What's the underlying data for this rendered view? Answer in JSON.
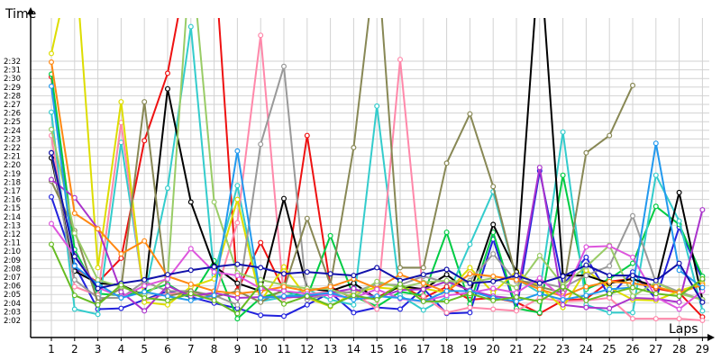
{
  "chart_data": {
    "type": "line",
    "xlabel": "Laps",
    "ylabel": "Time",
    "x": [
      1,
      2,
      3,
      4,
      5,
      6,
      7,
      8,
      9,
      10,
      11,
      12,
      13,
      14,
      15,
      16,
      17,
      18,
      19,
      20,
      21,
      22,
      23,
      24,
      25,
      26,
      27,
      28,
      29
    ],
    "x_ticks": [
      "1",
      "2",
      "3",
      "4",
      "5",
      "6",
      "7",
      "8",
      "9",
      "10",
      "11",
      "12",
      "13",
      "14",
      "15",
      "16",
      "17",
      "18",
      "19",
      "20",
      "21",
      "22",
      "23",
      "24",
      "25",
      "26",
      "27",
      "28",
      "29"
    ],
    "y_ticks": [
      "2:02",
      "2:03",
      "2:04",
      "2:05",
      "2:06",
      "2:07",
      "2:08",
      "2:09",
      "2:10",
      "2:11",
      "2:12",
      "2:13",
      "2:14",
      "2:15",
      "2:16",
      "2:17",
      "2:18",
      "2:19",
      "2:20",
      "2:21",
      "2:22",
      "2:23",
      "2:24",
      "2:25",
      "2:26",
      "2:27",
      "2:28",
      "2:29",
      "2:30",
      "2:31",
      "2:32"
    ],
    "ylim": [
      121,
      153
    ],
    "grid": true,
    "series": [
      {
        "color": "#ee1111",
        "values": [
          150.2,
          128.1,
          126.4,
          129.2,
          142.8,
          150.6,
          165,
          165,
          125.5,
          131,
          125.5,
          143.4,
          125.9,
          124.5,
          124.6,
          126.1,
          124.6,
          125.9,
          124.4,
          124.6,
          124.1,
          122.8,
          124.3,
          124.5,
          126.5,
          126.8,
          125.7,
          125.2,
          122.4
        ]
      },
      {
        "color": "#2222dd",
        "values": [
          136.3,
          128.4,
          123.3,
          123.4,
          124.4,
          125.4,
          124.7,
          124,
          123.4,
          122.6,
          122.5,
          123.8,
          125.2,
          122.9,
          123.5,
          123.3,
          125.7,
          122.8,
          122.9,
          131.4,
          123.2,
          139.3,
          126.1,
          129.3,
          124.8,
          127.6,
          124.5,
          132.8,
          126.7
        ]
      },
      {
        "color": "#00cc44",
        "values": [
          150.5,
          130.2,
          125.1,
          124.9,
          125.3,
          126.2,
          124.6,
          128.9,
          122.2,
          124.6,
          125.4,
          124.7,
          131.8,
          124.8,
          123.6,
          125.3,
          124.9,
          132.2,
          123.9,
          132.2,
          123.4,
          122.9,
          138.8,
          125.6,
          126.8,
          128.6,
          135.2,
          133.1,
          127.1
        ]
      },
      {
        "color": "#33cccc",
        "values": [
          146.1,
          123.3,
          122.7,
          142.6,
          124.8,
          137.3,
          156,
          127.3,
          137.6,
          124.2,
          124.7,
          125.6,
          124.4,
          123.8,
          146.8,
          124.9,
          123.2,
          124.7,
          130.8,
          136.9,
          126.8,
          125.2,
          143.8,
          123.8,
          122.9,
          122.9,
          138.8,
          133.5,
          123.1
        ]
      },
      {
        "color": "#ff88aa",
        "values": [
          143.4,
          125.9,
          124.9,
          144.9,
          124.3,
          125.1,
          125.2,
          124.4,
          133.3,
          155,
          124.5,
          125,
          125.4,
          125.2,
          123.3,
          152.2,
          124.8,
          122.9,
          123.5,
          123.3,
          123.1,
          124.6,
          124.2,
          124.3,
          124.6,
          122.2,
          122.2,
          122.2,
          122.0
        ]
      },
      {
        "color": "#dddd00",
        "values": [
          152.9,
          165,
          128.1,
          147.3,
          124.1,
          123.8,
          125.9,
          126.8,
          136,
          124.2,
          128.2,
          124.6,
          123.6,
          125.2,
          125.8,
          125.6,
          125.7,
          125.2,
          128.1,
          125.2,
          127.7,
          125.9,
          123.5,
          127.8,
          125.8,
          124.4,
          124.3,
          125.4,
          126.3
        ]
      },
      {
        "color": "#000000",
        "values": [
          140.8,
          127.7,
          126.3,
          126.1,
          124.9,
          148.8,
          135.7,
          128.3,
          126.3,
          125.4,
          136.1,
          125.7,
          125.4,
          126.3,
          124.5,
          126,
          125.6,
          127.3,
          125.2,
          133.1,
          127.6,
          165,
          127.2,
          127.2,
          126.3,
          126.8,
          125.9,
          136.8,
          124.4
        ]
      },
      {
        "color": "#999999",
        "values": [
          141.4,
          126.7,
          124.6,
          124.6,
          126.5,
          125.4,
          125.4,
          124.9,
          123.8,
          142.4,
          151.4,
          124.4,
          125.1,
          125.3,
          126.2,
          126.1,
          127.1,
          126.4,
          126.6,
          129.7,
          126.5,
          126.4,
          125.8,
          127.2,
          128.3,
          134.1,
          126.4,
          125.3,
          124.4
        ]
      },
      {
        "color": "#888855",
        "values": [
          138.1,
          132.4,
          124.1,
          125.7,
          147.3,
          124.8,
          125.4,
          124.7,
          125.4,
          124.1,
          125.6,
          133.8,
          126.1,
          142,
          165,
          128.1,
          128.1,
          140.2,
          145.9,
          137.5,
          126.8,
          125.9,
          125.2,
          141.4,
          143.4,
          149.2,
          null,
          null,
          null
        ]
      },
      {
        "color": "#aa33cc",
        "values": [
          138.3,
          136.2,
          132.6,
          125.3,
          123.1,
          126,
          124.8,
          125.2,
          124.6,
          124.7,
          124.7,
          124.7,
          125.2,
          125.7,
          124.6,
          125.5,
          125.6,
          126.5,
          125.5,
          124.8,
          124.5,
          139.7,
          123.8,
          123.5,
          123.4,
          124.6,
          124.5,
          124.1,
          134.8
        ]
      },
      {
        "color": "#99cc66",
        "values": [
          144.1,
          132.1,
          126.7,
          125.9,
          124.9,
          126.9,
          165,
          135.7,
          127.5,
          126.7,
          126.1,
          125.7,
          125.6,
          124.7,
          126.5,
          125.8,
          126.4,
          126.6,
          126.4,
          126.9,
          125.8,
          129.5,
          126.1,
          128.2,
          130.7,
          124.8,
          126.4,
          125.1,
          124.4
        ]
      },
      {
        "color": "#ff8811",
        "values": [
          151.9,
          134.4,
          132.6,
          129.7,
          131.2,
          127.1,
          126.2,
          125.4,
          125.1,
          125.4,
          125.9,
          125.4,
          125.9,
          126.8,
          125.7,
          127.3,
          126.3,
          125.3,
          127.4,
          127.1,
          126.7,
          125.6,
          124.8,
          125.9,
          126.5,
          126.3,
          125.9,
          125.2,
          126.1
        ]
      },
      {
        "color": "#dd55dd",
        "values": [
          133.2,
          129.5,
          125.8,
          124.7,
          126,
          126.8,
          130.3,
          127.6,
          127.2,
          125.7,
          125.4,
          125.1,
          124.9,
          124.6,
          125.6,
          124.5,
          124.2,
          124.9,
          125.2,
          125.7,
          125.2,
          126.9,
          124.6,
          130.5,
          130.6,
          129.3,
          124.7,
          123.3,
          125.4
        ]
      },
      {
        "color": "#2299ee",
        "values": [
          149.1,
          128.3,
          126.2,
          124.6,
          125.3,
          124.8,
          124.3,
          124.9,
          141.6,
          124.6,
          124.8,
          124.9,
          125.2,
          124.4,
          124.8,
          124.6,
          124.2,
          125.4,
          125.4,
          124.6,
          124.2,
          125.1,
          124.4,
          124.9,
          125.6,
          125.8,
          142.5,
          127.8,
          125.8
        ]
      },
      {
        "color": "#1111aa",
        "values": [
          141.4,
          129.4,
          125.7,
          126.3,
          126.7,
          127.3,
          127.8,
          128.2,
          128.5,
          128.1,
          127.4,
          127.6,
          127.4,
          127.2,
          128.1,
          126.6,
          127.3,
          127.9,
          126.3,
          126.5,
          127.2,
          126.3,
          127.1,
          128.4,
          127.2,
          127.2,
          126.6,
          128.6,
          124.1
        ]
      },
      {
        "color": "#66bb22",
        "values": [
          130.8,
          124.9,
          123.8,
          126.1,
          124.6,
          124.3,
          125.1,
          124.3,
          122.8,
          126.2,
          123.9,
          124.8,
          123.7,
          124.9,
          124.4,
          126.2,
          124.2,
          124.2,
          125.1,
          124.3,
          124.7,
          124.2,
          125.9,
          124.3,
          125.1,
          125.8,
          125.1,
          124.8,
          126.8
        ]
      }
    ]
  }
}
